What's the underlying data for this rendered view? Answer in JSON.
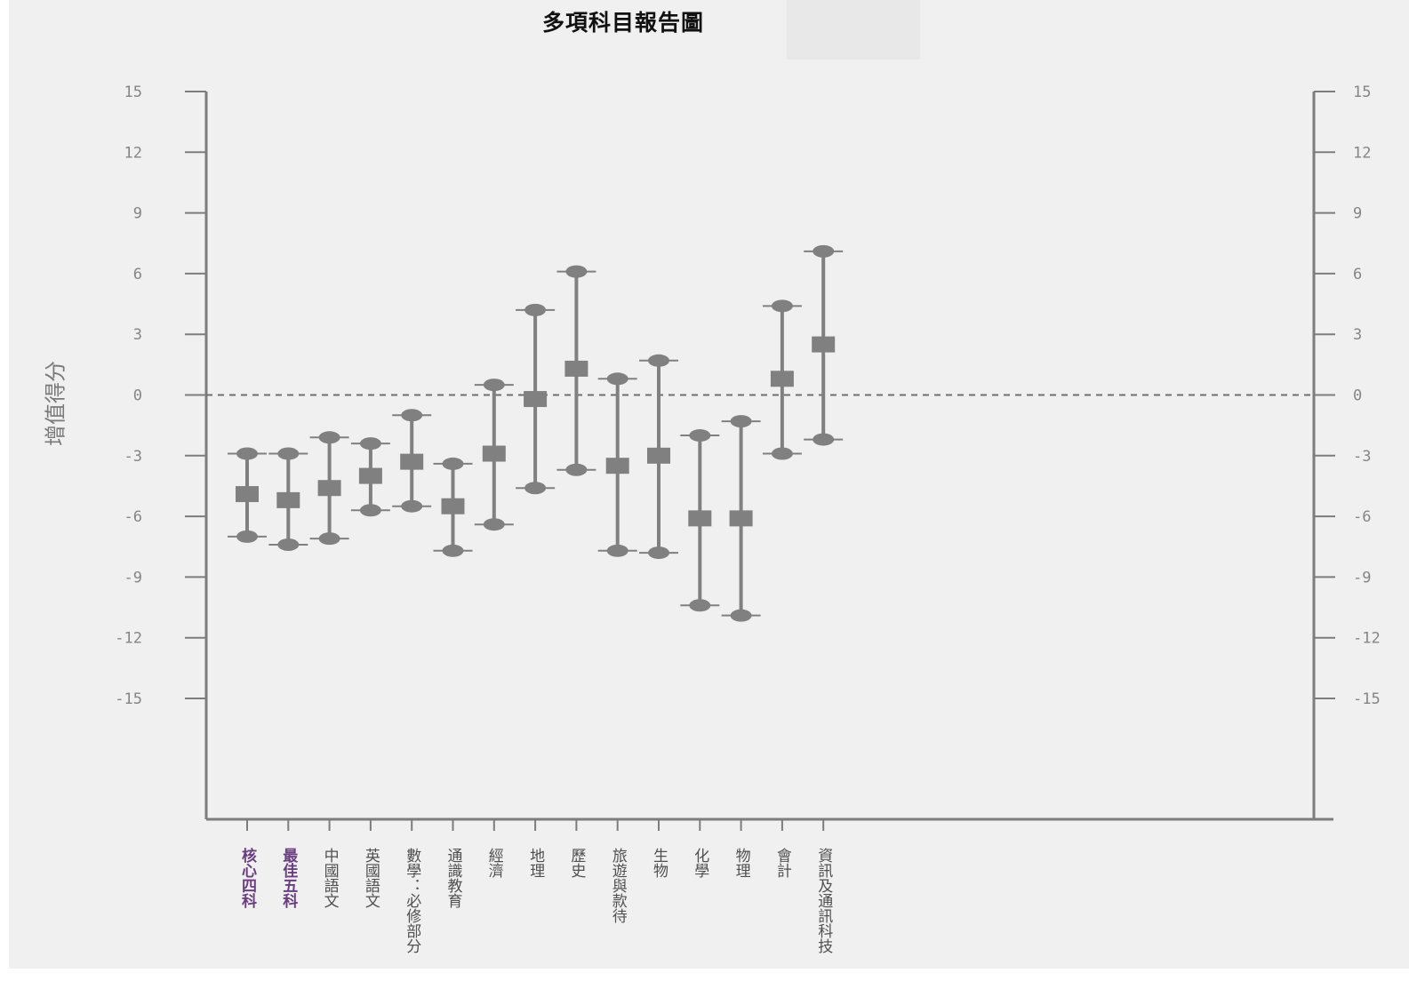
{
  "title": "多項科目報告圖",
  "chart_data": {
    "type": "errorbar",
    "title": "多項科目報告圖",
    "ylabel": "增值得分",
    "ylim": [
      -15,
      15
    ],
    "yticks": [
      15,
      12,
      9,
      6,
      3,
      0,
      -3,
      -6,
      -9,
      -12,
      -15
    ],
    "reference_line": 0,
    "grid": false,
    "categories": [
      "核心四科",
      "最佳五科",
      "中國語文",
      "英國語文",
      "數學：必修部分",
      "通識教育",
      "經濟",
      "地理",
      "歷史",
      "旅遊與款待",
      "生物",
      "化學",
      "物理",
      "會計",
      "資訊及通訊科技"
    ],
    "highlighted_categories": [
      "核心四科",
      "最佳五科"
    ],
    "estimate": [
      -4.9,
      -5.2,
      -4.6,
      -4.0,
      -3.3,
      -5.5,
      -2.9,
      -0.2,
      1.3,
      -3.5,
      -3.0,
      -6.1,
      -6.1,
      0.8,
      2.5
    ],
    "upper": [
      -2.9,
      -2.9,
      -2.1,
      -2.4,
      -1.0,
      -3.4,
      0.5,
      4.2,
      6.1,
      0.8,
      1.7,
      -2.0,
      -1.3,
      4.4,
      7.1
    ],
    "lower": [
      -7.0,
      -7.4,
      -7.1,
      -5.7,
      -5.5,
      -7.7,
      -6.4,
      -4.6,
      -3.7,
      -7.7,
      -7.8,
      -10.4,
      -10.9,
      -2.9,
      -2.2
    ]
  },
  "colors": {
    "axis": "#7d7d7d",
    "bar": "#808080",
    "tick_text": "#858585",
    "label_text": "#505050",
    "highlight_text": "#6a3d80"
  }
}
